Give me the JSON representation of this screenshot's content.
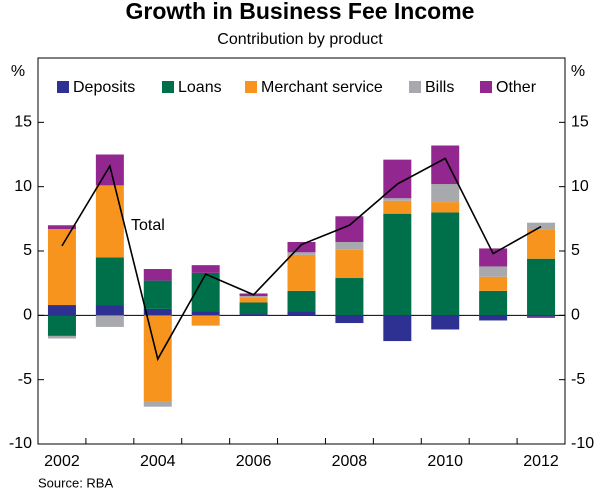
{
  "chart_data": {
    "type": "bar",
    "stacked": true,
    "title": "Growth in Business Fee Income",
    "subtitle": "Contribution by product",
    "ylabel": "%",
    "y2label": "%",
    "source": "Source: RBA",
    "categories": [
      "2002",
      null,
      "2004",
      null,
      "2006",
      null,
      "2008",
      null,
      "2010",
      null,
      "2012"
    ],
    "ylim": [
      -10,
      20
    ],
    "yticks": [
      -10,
      -5,
      0,
      5,
      10,
      15
    ],
    "y2lim": [
      -10,
      20
    ],
    "y2ticks": [
      -10,
      -5,
      0,
      5,
      10,
      15
    ],
    "series": [
      {
        "name": "Deposits",
        "color": "#2e3192",
        "values": [
          0.8,
          0.8,
          0.5,
          0.3,
          0.1,
          0.3,
          -0.6,
          -2.0,
          -1.1,
          -0.4,
          -0.1
        ]
      },
      {
        "name": "Loans",
        "color": "#00704a",
        "values": [
          -1.6,
          3.7,
          2.2,
          3.0,
          0.9,
          1.6,
          2.9,
          7.9,
          8.0,
          1.9,
          4.4
        ]
      },
      {
        "name": "Merchant service",
        "color": "#f7941d",
        "values": [
          5.9,
          5.6,
          -6.7,
          -0.8,
          0.4,
          2.8,
          2.2,
          1.0,
          0.8,
          1.1,
          2.3
        ]
      },
      {
        "name": "Bills",
        "color": "#a7a9ac",
        "values": [
          -0.2,
          -0.9,
          -0.4,
          0.0,
          0.1,
          0.2,
          0.6,
          0.2,
          1.4,
          0.8,
          0.5
        ]
      },
      {
        "name": "Other",
        "color": "#92278f",
        "values": [
          0.3,
          2.4,
          0.9,
          0.6,
          0.2,
          0.8,
          2.0,
          3.0,
          3.0,
          1.4,
          -0.1
        ]
      },
      {
        "name": "Total",
        "type": "line",
        "color": "#000000",
        "values": [
          5.4,
          11.6,
          -3.4,
          3.2,
          1.6,
          5.5,
          7.0,
          10.2,
          12.2,
          4.8,
          6.9
        ]
      }
    ]
  }
}
